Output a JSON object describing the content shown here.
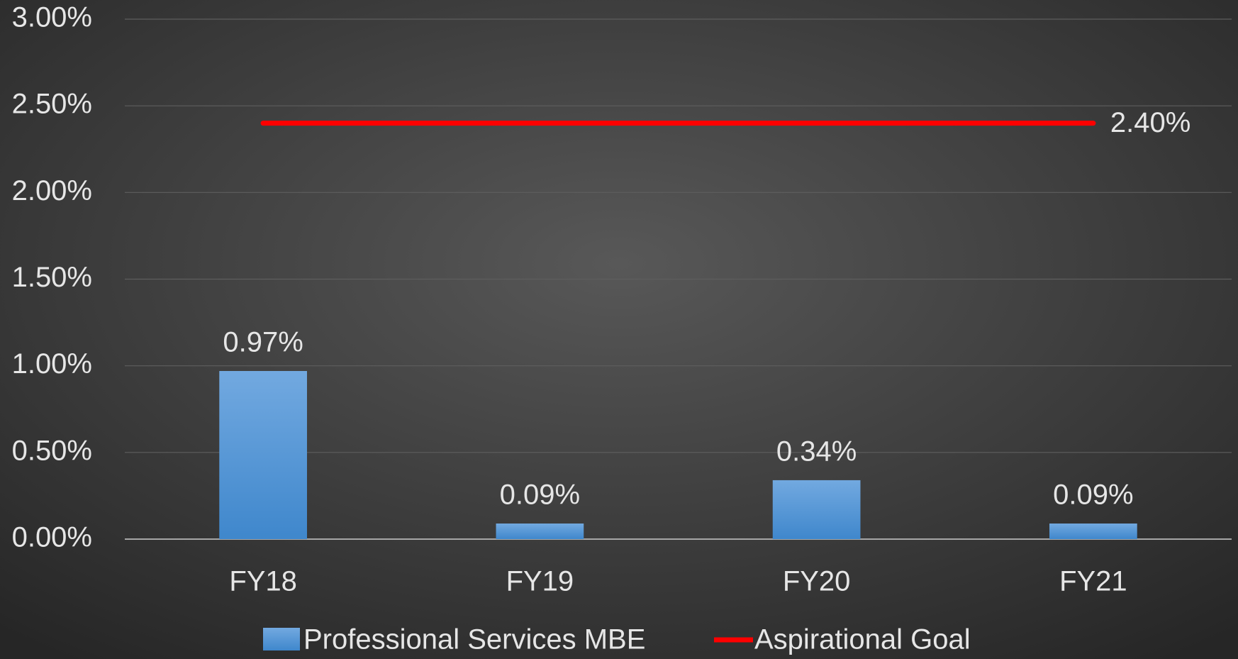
{
  "chart_data": {
    "type": "bar",
    "categories": [
      "FY18",
      "FY19",
      "FY20",
      "FY21"
    ],
    "series": [
      {
        "name": "Professional Services MBE",
        "type": "bar",
        "color": "#5b9bd5",
        "values": [
          0.97,
          0.09,
          0.34,
          0.09
        ],
        "value_labels": [
          "0.97%",
          "0.09%",
          "0.34%",
          "0.09%"
        ]
      },
      {
        "name": "Aspirational Goal",
        "type": "line",
        "color": "#ff0000",
        "values": [
          2.4,
          2.4,
          2.4,
          2.4
        ],
        "value_labels": [
          null,
          null,
          null,
          "2.40%"
        ]
      }
    ],
    "ylim": [
      0,
      3
    ],
    "yticks": [
      {
        "value": 0,
        "label": "0.00%"
      },
      {
        "value": 0.5,
        "label": "0.50%"
      },
      {
        "value": 1,
        "label": "1.00%"
      },
      {
        "value": 1.5,
        "label": "1.50%"
      },
      {
        "value": 2,
        "label": "2.00%"
      },
      {
        "value": 2.5,
        "label": "2.50%"
      },
      {
        "value": 3,
        "label": "3.00%"
      }
    ],
    "grid": true,
    "legend": "bottom"
  }
}
